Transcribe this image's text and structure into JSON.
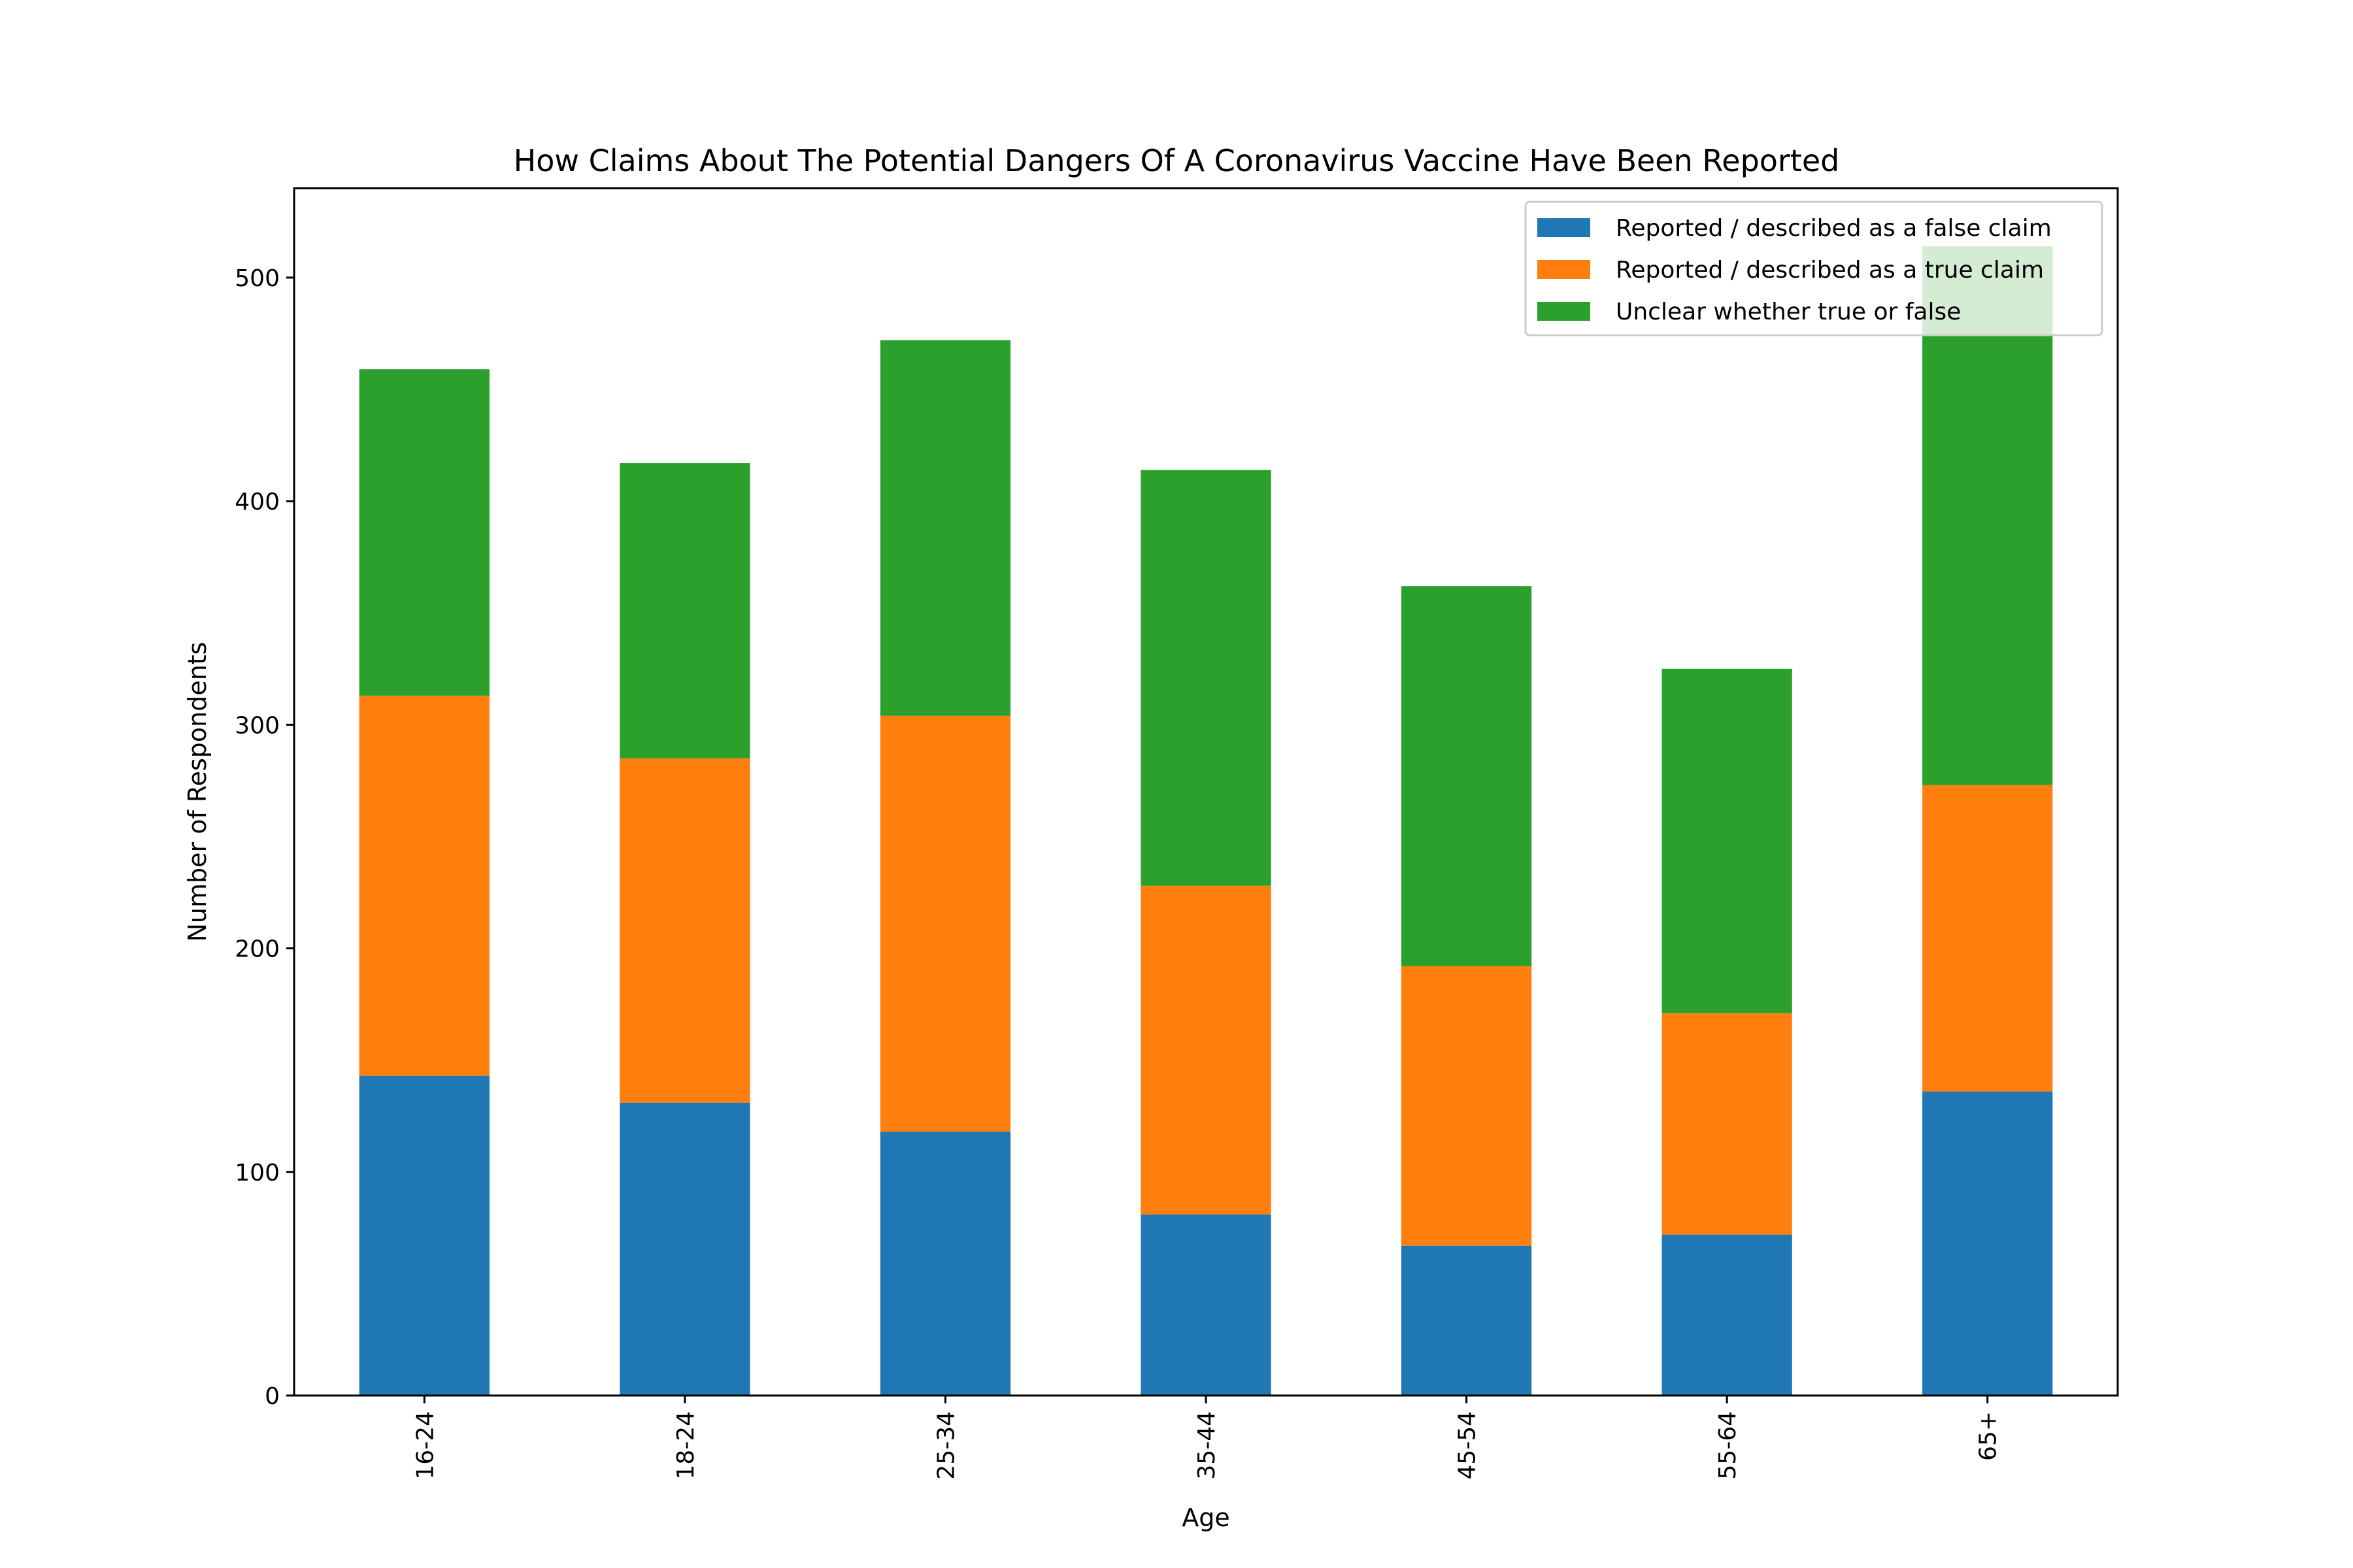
{
  "chart_data": {
    "type": "bar",
    "stacked": true,
    "title": "How Claims About The Potential Dangers Of A Coronavirus Vaccine Have Been Reported",
    "xlabel": "Age",
    "ylabel": "Number of Respondents",
    "categories": [
      "16-24",
      "18-24",
      "25-34",
      "35-44",
      "45-54",
      "55-64",
      "65+"
    ],
    "series": [
      {
        "name": "Reported / described as a false claim",
        "color": "#1f77b4",
        "values": [
          143,
          131,
          118,
          81,
          67,
          72,
          136
        ]
      },
      {
        "name": "Reported / described as a true claim",
        "color": "#ff7f0e",
        "values": [
          170,
          154,
          186,
          147,
          125,
          99,
          137
        ]
      },
      {
        "name": "Unclear whether true or false",
        "color": "#2ca02c",
        "values": [
          146,
          132,
          168,
          186,
          170,
          154,
          241
        ]
      }
    ],
    "ylim": [
      0,
      540
    ],
    "yticks": [
      0,
      100,
      200,
      300,
      400,
      500
    ],
    "xtick_rotation": "vertical",
    "grid": false,
    "legend_position": "top-right"
  }
}
